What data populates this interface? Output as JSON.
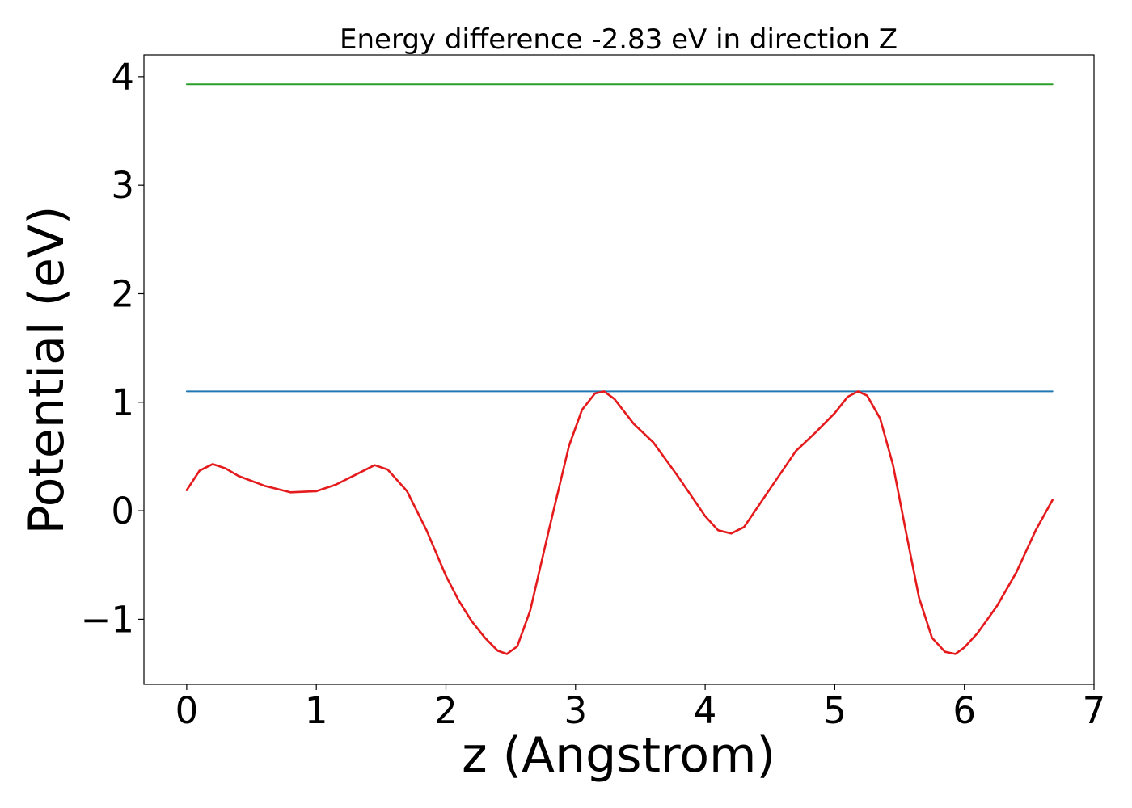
{
  "chart_data": {
    "type": "line",
    "title": "Energy difference -2.83 eV in direction Z",
    "xlabel": "z (Angstrom)",
    "ylabel": "Potential (eV)",
    "xlim": [
      -0.33,
      7.0
    ],
    "ylim": [
      -1.6,
      4.2
    ],
    "xticks": [
      0,
      1,
      2,
      3,
      4,
      5,
      6,
      7
    ],
    "xtick_labels": [
      "0",
      "1",
      "2",
      "3",
      "4",
      "5",
      "6",
      "7"
    ],
    "yticks": [
      -1,
      0,
      1,
      2,
      3,
      4
    ],
    "ytick_labels": [
      "−1",
      "0",
      "1",
      "2",
      "3",
      "4"
    ],
    "grid": false,
    "series": [
      {
        "color": "#2ca02c",
        "x": [
          0,
          6.68
        ],
        "y": [
          3.93,
          3.93
        ]
      },
      {
        "color": "#1f77b4",
        "x": [
          0,
          6.68
        ],
        "y": [
          1.1,
          1.1
        ]
      },
      {
        "color": "#e41a1c",
        "x": [
          0,
          0.1,
          0.2,
          0.3,
          0.4,
          0.6,
          0.8,
          1.0,
          1.15,
          1.3,
          1.45,
          1.55,
          1.7,
          1.85,
          2.0,
          2.1,
          2.2,
          2.3,
          2.4,
          2.47,
          2.55,
          2.65,
          2.8,
          2.95,
          3.05,
          3.15,
          3.22,
          3.3,
          3.45,
          3.6,
          3.8,
          4.0,
          4.1,
          4.2,
          4.3,
          4.5,
          4.7,
          4.85,
          5.0,
          5.1,
          5.18,
          5.25,
          5.35,
          5.45,
          5.55,
          5.65,
          5.75,
          5.85,
          5.93,
          6.0,
          6.1,
          6.25,
          6.4,
          6.55,
          6.68
        ],
        "y": [
          0.19,
          0.37,
          0.43,
          0.39,
          0.32,
          0.23,
          0.17,
          0.18,
          0.24,
          0.33,
          0.42,
          0.38,
          0.18,
          -0.18,
          -0.6,
          -0.83,
          -1.02,
          -1.17,
          -1.29,
          -1.32,
          -1.25,
          -0.92,
          -0.15,
          0.6,
          0.93,
          1.08,
          1.1,
          1.03,
          0.8,
          0.63,
          0.3,
          -0.05,
          -0.18,
          -0.21,
          -0.15,
          0.2,
          0.55,
          0.72,
          0.9,
          1.05,
          1.1,
          1.06,
          0.85,
          0.42,
          -0.2,
          -0.8,
          -1.17,
          -1.3,
          -1.32,
          -1.26,
          -1.13,
          -0.88,
          -0.57,
          -0.18,
          0.1
        ]
      }
    ]
  }
}
